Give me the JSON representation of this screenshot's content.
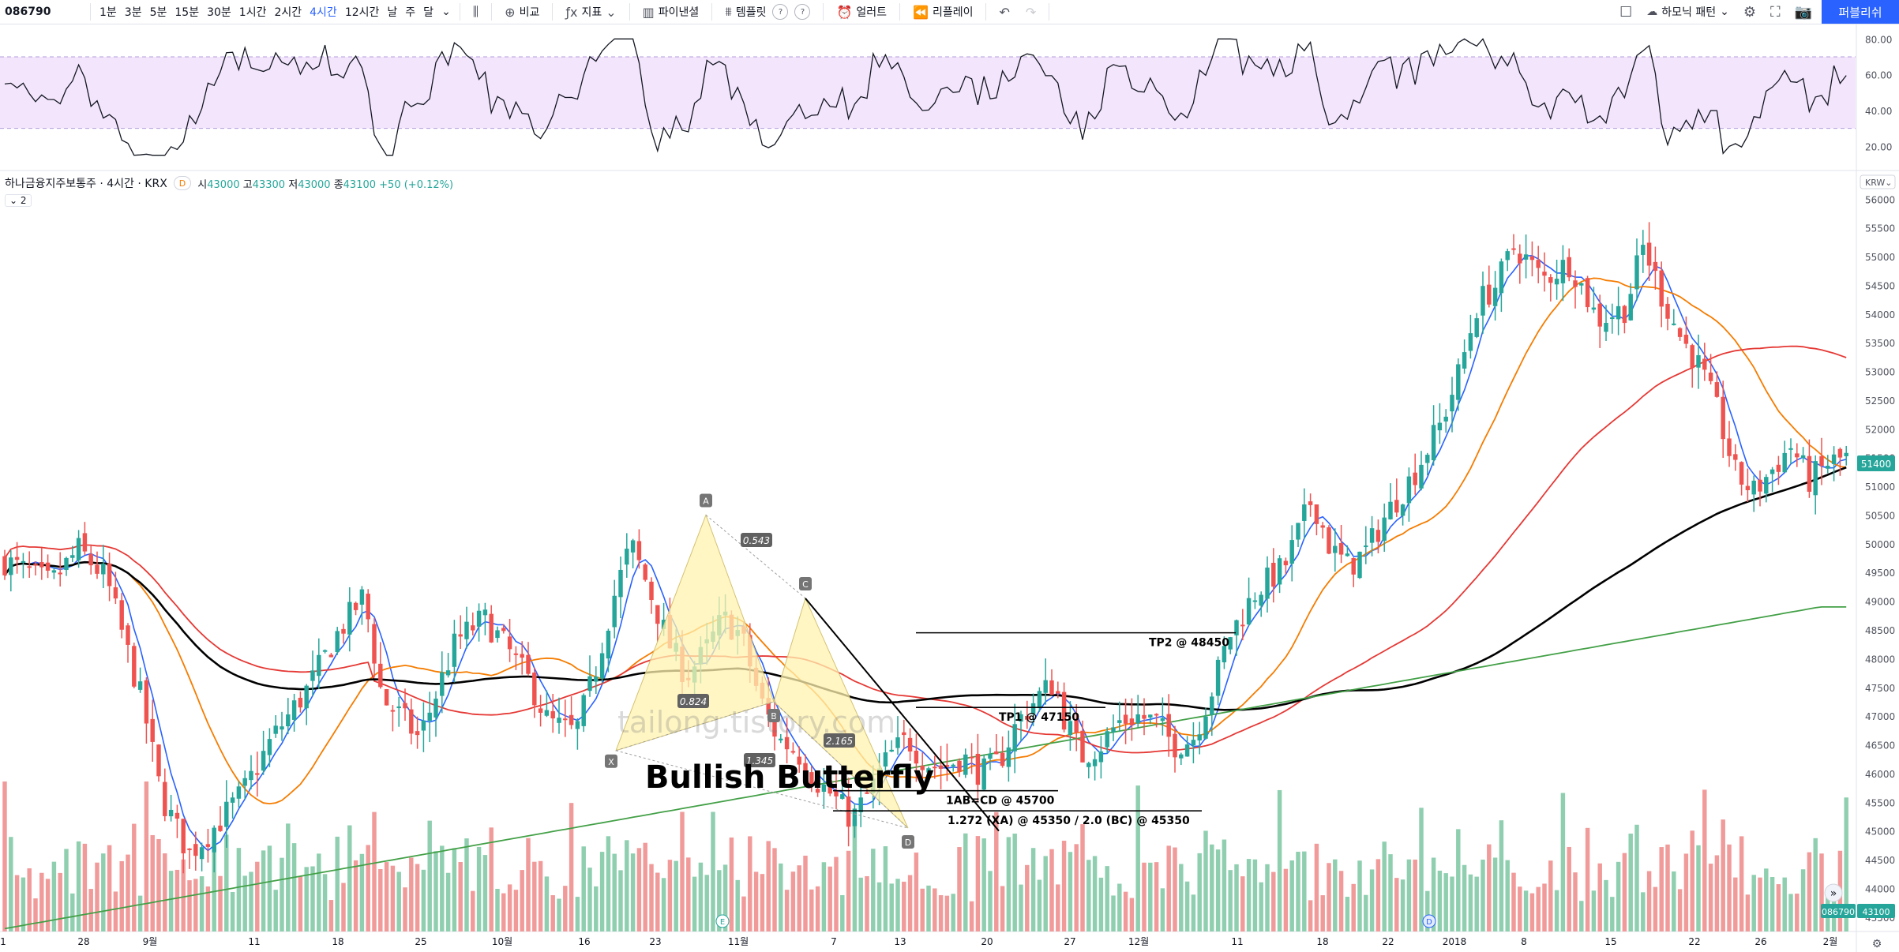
{
  "toolbar": {
    "symbol": "086790",
    "timeframes": [
      "1분",
      "3분",
      "5분",
      "15분",
      "30분",
      "1시간",
      "2시간",
      "4시간",
      "12시간",
      "날",
      "주",
      "달"
    ],
    "active_timeframe": "4시간",
    "compare_label": "비교",
    "indicators_label": "지표",
    "financials_label": "파이낸셜",
    "templates_label": "템플릿",
    "alert_label": "얼러트",
    "replay_label": "리플레이",
    "harmonic_label": "하모닉 패턴",
    "publish_label": "퍼블리쉬"
  },
  "legend": {
    "name": "하나금융지주보통주 · 4시간 · KRX",
    "badge": "D",
    "o_label": "시",
    "o": "43000",
    "h_label": "고",
    "h": "43300",
    "l_label": "저",
    "l": "43000",
    "c_label": "종",
    "c": "43100",
    "change": "+50 (+0.12%)",
    "collapse": "2"
  },
  "watermark": "tailong.tistory.com",
  "title": "Bullish Butterfly",
  "colors": {
    "up": "#26a69a",
    "down": "#ef5350",
    "vol_up": "#8fcfb0",
    "vol_down": "#f19a9a",
    "ma_fast": "#2962ff",
    "ma_20": "#f57c00",
    "ma_60": "#e53935",
    "ma_120": "#000000",
    "ma_240": "#43a047",
    "rsi_line": "#131722",
    "rsi_band": "#f3e5fc",
    "pattern_fill": "#fff3b0"
  },
  "chart_data": {
    "type": "candlestick",
    "currency": "KRW",
    "price_axis": [
      "56000",
      "55500",
      "55000",
      "54500",
      "54000",
      "53500",
      "53000",
      "52500",
      "52000",
      "51500",
      "51000",
      "50500",
      "50000",
      "49500",
      "49000",
      "48500",
      "48000",
      "47500",
      "47000",
      "46500",
      "46000",
      "45500",
      "45000",
      "44500",
      "44000",
      "43500"
    ],
    "price_range": [
      43250,
      56100
    ],
    "last_price": "51400",
    "volume_label": "086790",
    "volume_value": "43100",
    "rsi_axis": [
      "80.00",
      "60.00",
      "40.00",
      "20.00"
    ],
    "rsi_range": [
      10,
      85
    ],
    "rsi_band": [
      30,
      70
    ],
    "x_ticks": [
      "1",
      "28",
      "9월",
      "11",
      "18",
      "25",
      "10월",
      "16",
      "23",
      "11월",
      "7",
      "13",
      "20",
      "27",
      "12월",
      "11",
      "18",
      "22",
      "2018",
      "8",
      "15",
      "22",
      "26",
      "2월"
    ],
    "pattern": {
      "name": "Bullish Butterfly",
      "points": [
        {
          "label": "X",
          "value": 46400
        },
        {
          "label": "A",
          "value": 50500
        },
        {
          "label": "B",
          "value": 47250
        },
        {
          "label": "C",
          "value": 49050
        },
        {
          "label": "D",
          "value": 45050
        }
      ],
      "ratios": [
        "0.824",
        "0.543",
        "1.345",
        "2.165"
      ]
    },
    "levels": [
      {
        "label": "TP2 @ 48450",
        "value": 48450
      },
      {
        "label": "TP1 @ 47150",
        "value": 47150
      },
      {
        "label": "1AB=CD @ 45700",
        "value": 45700
      },
      {
        "label": "1.272 (XA) @ 45350 / 2.0 (BC) @ 45350",
        "value": 45350
      }
    ],
    "moving_averages": [
      "MA fast",
      "MA 20",
      "MA 60",
      "MA 120",
      "MA 240"
    ]
  }
}
